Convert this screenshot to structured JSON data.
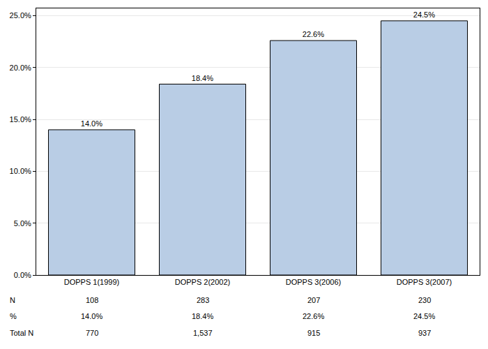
{
  "chart_data": {
    "type": "bar",
    "categories": [
      "DOPPS 1(1999)",
      "DOPPS 2(2002)",
      "DOPPS 3(2006)",
      "DOPPS 3(2007)"
    ],
    "values": [
      14.0,
      18.4,
      22.6,
      24.5
    ],
    "value_labels": [
      "14.0%",
      "18.4%",
      "22.6%",
      "24.5%"
    ],
    "data_labels": true,
    "color": "#b9cde5",
    "ylim": [
      0,
      25.7
    ],
    "yticks": [
      {
        "value": 0,
        "label": "0.0%"
      },
      {
        "value": 5,
        "label": "5.0%"
      },
      {
        "value": 10,
        "label": "10.0%"
      },
      {
        "value": 15,
        "label": "15.0%"
      },
      {
        "value": 20,
        "label": "20.0%"
      },
      {
        "value": 25,
        "label": "25.0%"
      }
    ],
    "grid": true,
    "table": {
      "rows": [
        {
          "label": "N",
          "values": [
            "108",
            "283",
            "207",
            "230"
          ]
        },
        {
          "label": "%",
          "values": [
            "14.0%",
            "18.4%",
            "22.6%",
            "24.5%"
          ]
        },
        {
          "label": "Total N",
          "values": [
            "770",
            "1,537",
            "915",
            "937"
          ]
        }
      ]
    }
  }
}
